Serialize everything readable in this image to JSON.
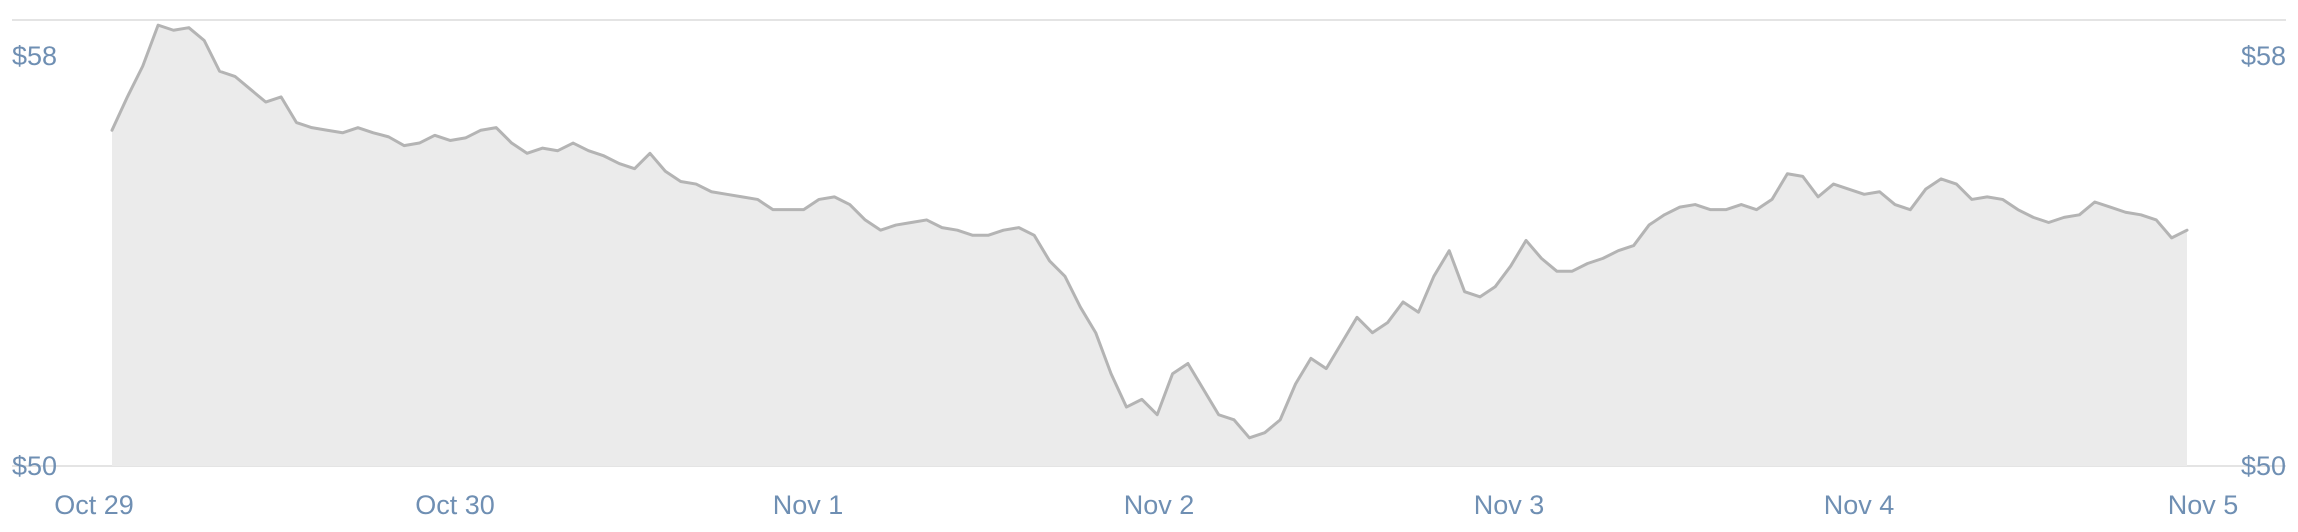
{
  "chart_data": {
    "type": "area",
    "title": "",
    "xlabel": "",
    "ylabel": "",
    "ylim": [
      50,
      58.7
    ],
    "grid": false,
    "x_tick_labels": [
      "Oct 29",
      "Oct 30",
      "Nov 1",
      "Nov 2",
      "Nov 3",
      "Nov 4",
      "Nov 5"
    ],
    "y_tick_labels_left": [
      "$58",
      "$50"
    ],
    "y_tick_labels_right": [
      "$58",
      "$50"
    ],
    "y_tick_values": [
      58,
      50
    ],
    "colors": {
      "line": "#b4b4b4",
      "fill": "#ebebeb",
      "tick_text": "#6f8fb3",
      "axis_line": "#dcdcdc"
    },
    "series": [
      {
        "values": [
          56.55,
          57.2,
          57.8,
          58.6,
          58.5,
          58.55,
          58.3,
          57.7,
          57.6,
          57.35,
          57.1,
          57.2,
          56.7,
          56.6,
          56.55,
          56.5,
          56.6,
          56.5,
          56.42,
          56.25,
          56.3,
          56.45,
          56.35,
          56.4,
          56.55,
          56.6,
          56.3,
          56.1,
          56.2,
          56.15,
          56.3,
          56.15,
          56.05,
          55.9,
          55.8,
          56.1,
          55.75,
          55.55,
          55.5,
          55.35,
          55.3,
          55.25,
          55.2,
          55.0,
          55.0,
          55.0,
          55.2,
          55.25,
          55.1,
          54.8,
          54.6,
          54.7,
          54.75,
          54.8,
          54.65,
          54.6,
          54.5,
          54.5,
          54.6,
          54.65,
          54.5,
          54.0,
          53.7,
          53.1,
          52.6,
          51.8,
          51.15,
          51.3,
          51.0,
          51.8,
          52.0,
          51.5,
          51.0,
          50.9,
          50.55,
          50.65,
          50.9,
          51.6,
          52.1,
          51.9,
          52.4,
          52.9,
          52.6,
          52.8,
          53.2,
          53.0,
          53.7,
          54.2,
          53.4,
          53.3,
          53.5,
          53.9,
          54.4,
          54.05,
          53.8,
          53.8,
          53.95,
          54.05,
          54.2,
          54.3,
          54.7,
          54.9,
          55.05,
          55.1,
          55.0,
          55.0,
          55.1,
          55.0,
          55.2,
          55.7,
          55.65,
          55.25,
          55.5,
          55.4,
          55.3,
          55.35,
          55.1,
          55.0,
          55.4,
          55.6,
          55.5,
          55.2,
          55.25,
          55.2,
          55.0,
          54.85,
          54.75,
          54.85,
          54.9,
          55.15,
          55.05,
          54.95,
          54.9,
          54.8,
          54.45,
          54.6
        ]
      }
    ]
  }
}
